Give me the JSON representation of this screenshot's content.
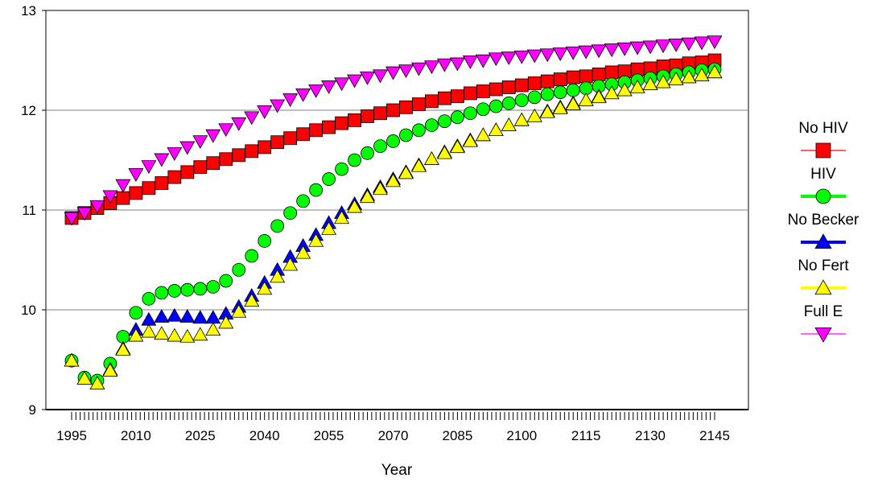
{
  "chart_data": {
    "type": "line",
    "xlabel": "Year",
    "ylabel": "",
    "ylim": [
      9,
      13
    ],
    "yticks": [
      9,
      10,
      11,
      12,
      13
    ],
    "xlim": [
      1995,
      2145
    ],
    "x_tick_labels": [
      "1995",
      "2010",
      "2025",
      "2040",
      "2055",
      "2070",
      "2085",
      "2100",
      "2115",
      "2130",
      "2145"
    ],
    "x_minor_step": 1,
    "grid": {
      "y_major": true
    },
    "legend_position": "right",
    "x": [
      1995,
      1998,
      2001,
      2004,
      2007,
      2010,
      2013,
      2016,
      2019,
      2022,
      2025,
      2028,
      2031,
      2034,
      2037,
      2040,
      2043,
      2046,
      2049,
      2052,
      2055,
      2058,
      2061,
      2064,
      2067,
      2070,
      2073,
      2076,
      2079,
      2082,
      2085,
      2088,
      2091,
      2094,
      2097,
      2100,
      2103,
      2106,
      2109,
      2112,
      2115,
      2118,
      2121,
      2124,
      2127,
      2130,
      2133,
      2136,
      2139,
      2142,
      2145
    ],
    "series": [
      {
        "name": "No HIV",
        "color": "#ff0000",
        "marker": "square",
        "values": [
          10.92,
          10.97,
          11.02,
          11.07,
          11.12,
          11.17,
          11.22,
          11.27,
          11.33,
          11.38,
          11.43,
          11.47,
          11.51,
          11.55,
          11.59,
          11.63,
          11.68,
          11.72,
          11.76,
          11.8,
          11.83,
          11.87,
          11.9,
          11.94,
          11.97,
          12.0,
          12.03,
          12.06,
          12.09,
          12.12,
          12.14,
          12.17,
          12.19,
          12.21,
          12.23,
          12.25,
          12.27,
          12.29,
          12.31,
          12.33,
          12.34,
          12.36,
          12.38,
          12.39,
          12.41,
          12.42,
          12.44,
          12.45,
          12.47,
          12.48,
          12.5
        ]
      },
      {
        "name": "HIV",
        "color": "#00ff00",
        "marker": "circle",
        "values": [
          9.49,
          9.32,
          9.29,
          9.46,
          9.73,
          9.97,
          10.11,
          10.17,
          10.19,
          10.2,
          10.21,
          10.23,
          10.29,
          10.4,
          10.54,
          10.69,
          10.84,
          10.97,
          11.09,
          11.2,
          11.31,
          11.41,
          11.5,
          11.57,
          11.64,
          11.69,
          11.75,
          11.8,
          11.85,
          11.89,
          11.93,
          11.97,
          12.01,
          12.04,
          12.07,
          12.1,
          12.13,
          12.16,
          12.18,
          12.2,
          12.22,
          12.24,
          12.26,
          12.28,
          12.3,
          12.32,
          12.34,
          12.36,
          12.38,
          12.4,
          12.41
        ]
      },
      {
        "name": "No Becker",
        "color": "#0000ff",
        "marker": "triangle-up",
        "values": [
          9.49,
          9.31,
          9.26,
          9.4,
          9.61,
          9.8,
          9.9,
          9.93,
          9.94,
          9.93,
          9.92,
          9.92,
          9.96,
          10.03,
          10.14,
          10.27,
          10.4,
          10.53,
          10.64,
          10.75,
          10.87,
          10.97,
          11.06,
          11.15,
          11.23,
          11.31,
          11.38,
          11.45,
          11.51,
          11.58,
          11.64,
          11.7,
          11.75,
          11.8,
          11.85,
          11.9,
          11.94,
          11.99,
          12.03,
          12.07,
          12.1,
          12.14,
          12.17,
          12.2,
          12.23,
          12.26,
          12.28,
          12.31,
          12.33,
          12.35,
          12.38
        ]
      },
      {
        "name": "No Fert",
        "color": "#ffff00",
        "marker": "triangle-up",
        "values": [
          9.49,
          9.31,
          9.26,
          9.39,
          9.6,
          9.74,
          9.78,
          9.76,
          9.74,
          9.73,
          9.75,
          9.8,
          9.87,
          9.98,
          10.09,
          10.21,
          10.33,
          10.45,
          10.57,
          10.69,
          10.81,
          10.92,
          11.03,
          11.13,
          11.21,
          11.29,
          11.37,
          11.44,
          11.51,
          11.57,
          11.63,
          11.69,
          11.75,
          11.8,
          11.85,
          11.9,
          11.94,
          11.98,
          12.02,
          12.06,
          12.1,
          12.13,
          12.17,
          12.2,
          12.23,
          12.26,
          12.28,
          12.31,
          12.33,
          12.35,
          12.38
        ]
      },
      {
        "name": "Full E",
        "color": "#ff00ff",
        "marker": "triangle-down",
        "values": [
          10.92,
          10.97,
          11.04,
          11.14,
          11.25,
          11.36,
          11.44,
          11.51,
          11.57,
          11.63,
          11.69,
          11.75,
          11.81,
          11.87,
          11.93,
          11.99,
          12.05,
          12.11,
          12.16,
          12.2,
          12.24,
          12.27,
          12.3,
          12.33,
          12.35,
          12.38,
          12.4,
          12.42,
          12.44,
          12.46,
          12.47,
          12.49,
          12.5,
          12.52,
          12.53,
          12.54,
          12.55,
          12.56,
          12.57,
          12.58,
          12.59,
          12.6,
          12.61,
          12.62,
          12.63,
          12.64,
          12.65,
          12.66,
          12.67,
          12.68,
          12.69
        ]
      }
    ]
  }
}
